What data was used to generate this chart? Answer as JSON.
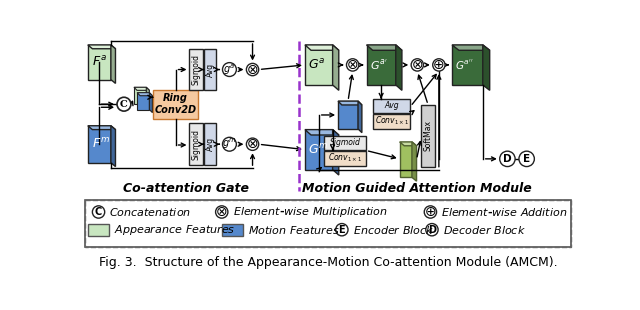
{
  "fig_width": 6.4,
  "fig_height": 3.1,
  "dpi": 100,
  "bg_color": "#ffffff",
  "app_light": "#c8e6c0",
  "app_mid": "#7dba79",
  "app_dark": "#3a6b3a",
  "mot_light": "#5588cc",
  "mot_mid": "#2255aa",
  "mot_dark": "#0f3d7a",
  "ring_color": "#f5c9a0",
  "ring_edge": "#c87830",
  "sig_color": "#e8e8e8",
  "avg_color": "#d0d8e8",
  "conv_color": "#f0ddc8",
  "softmax_color": "#d0d0d0",
  "olive_light": "#a0c060",
  "olive_dark": "#507030",
  "caption": "Fig. 3.  Structure of the Appearance-Motion Co-attention Module (AMCM).",
  "label_coattn": "Co-attention Gate",
  "label_motion": "Motion Guided Attention Module"
}
